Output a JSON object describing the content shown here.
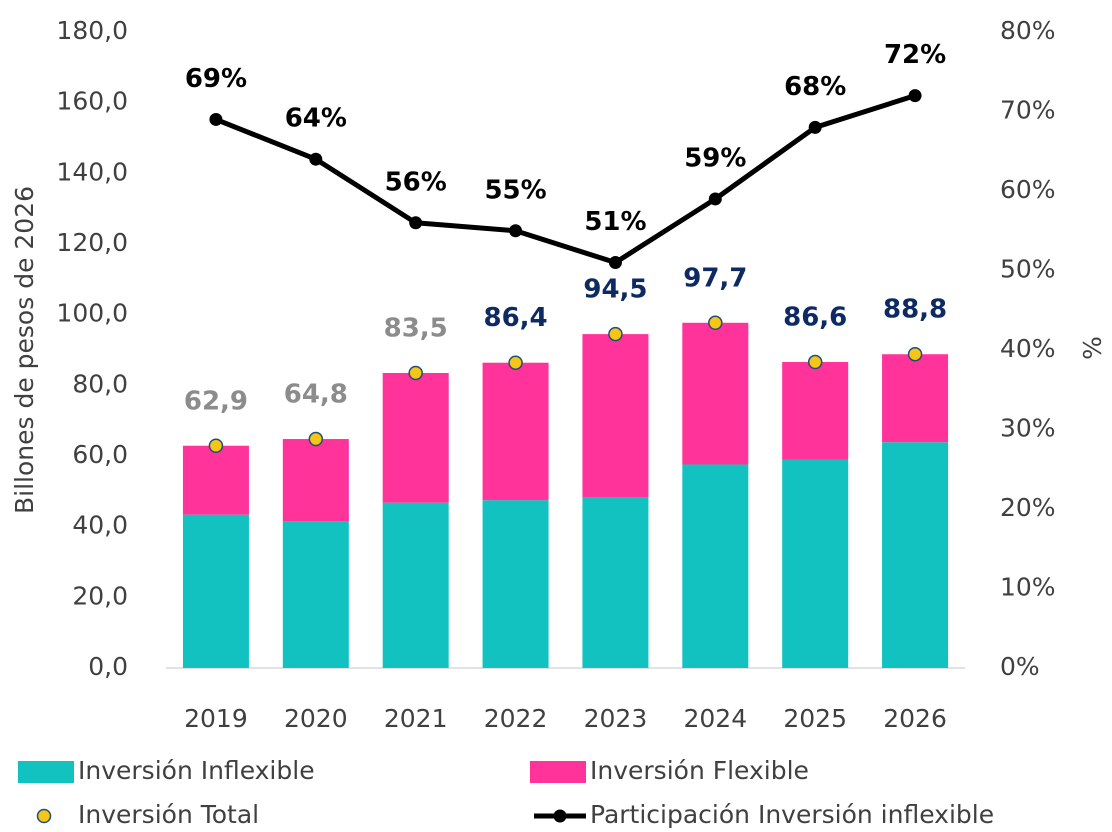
{
  "chart_data": {
    "type": "bar",
    "stacked": true,
    "y_label": "Billones de pesos de 2026",
    "y2_label": "%",
    "categories": [
      "2019",
      "2020",
      "2021",
      "2022",
      "2023",
      "2024",
      "2025",
      "2026"
    ],
    "series": [
      {
        "name": "Inversión Inflexible",
        "type": "bar",
        "color": "#12c2c0",
        "values": [
          43.4,
          41.5,
          46.8,
          47.5,
          48.2,
          57.6,
          58.9,
          63.9
        ]
      },
      {
        "name": "Inversión Flexible",
        "type": "bar",
        "color": "#ff3399",
        "values": [
          19.5,
          23.3,
          36.7,
          38.9,
          46.3,
          40.1,
          27.7,
          24.9
        ]
      },
      {
        "name": "Inversión Total",
        "type": "scatter",
        "color": "#f5c518",
        "values": [
          62.9,
          64.8,
          83.5,
          86.4,
          94.5,
          97.7,
          86.6,
          88.8
        ],
        "value_labels": [
          "62,9",
          "64,8",
          "83,5",
          "86,4",
          "94,5",
          "97,7",
          "86,6",
          "88,8"
        ],
        "label_colors": [
          "#8c8c8c",
          "#8c8c8c",
          "#8c8c8c",
          "#0d2a63",
          "#0d2a63",
          "#0d2a63",
          "#0d2a63",
          "#0d2a63"
        ]
      },
      {
        "name": "Participación Inversión inflexible",
        "type": "line",
        "axis": "y2",
        "color": "#000000",
        "values": [
          69,
          64,
          56,
          55,
          51,
          59,
          68,
          72
        ],
        "value_labels": [
          "69%",
          "64%",
          "56%",
          "55%",
          "51%",
          "59%",
          "68%",
          "72%"
        ]
      }
    ],
    "ylim": [
      0,
      180
    ],
    "yticks": [
      {
        "value": 0,
        "label": "0,0"
      },
      {
        "value": 20,
        "label": "20,0"
      },
      {
        "value": 40,
        "label": "40,0"
      },
      {
        "value": 60,
        "label": "60,0"
      },
      {
        "value": 80,
        "label": "80,0"
      },
      {
        "value": 100,
        "label": "100,0"
      },
      {
        "value": 120,
        "label": "120,0"
      },
      {
        "value": 140,
        "label": "140,0"
      },
      {
        "value": 160,
        "label": "160,0"
      },
      {
        "value": 180,
        "label": "180,0"
      }
    ],
    "y2lim": [
      0,
      80
    ],
    "y2ticks": [
      {
        "value": 0,
        "label": "0%"
      },
      {
        "value": 10,
        "label": "10%"
      },
      {
        "value": 20,
        "label": "20%"
      },
      {
        "value": 30,
        "label": "30%"
      },
      {
        "value": 40,
        "label": "40%"
      },
      {
        "value": 50,
        "label": "50%"
      },
      {
        "value": 60,
        "label": "60%"
      },
      {
        "value": 70,
        "label": "70%"
      },
      {
        "value": 80,
        "label": "80%"
      }
    ],
    "grid": false
  }
}
